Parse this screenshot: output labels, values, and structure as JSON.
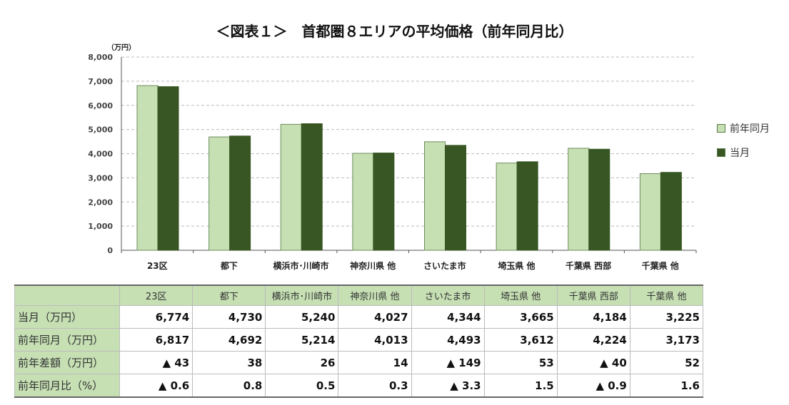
{
  "chart_data": {
    "type": "bar",
    "title": "＜図表１＞　首都圏８エリアの平均価格（前年同月比）",
    "ylabel": "（万円）",
    "ylim": [
      0,
      8000
    ],
    "yticks": [
      "0",
      "1,000",
      "2,000",
      "3,000",
      "4,000",
      "5,000",
      "6,000",
      "7,000",
      "8,000"
    ],
    "grid": true,
    "legend_position": "right",
    "categories": [
      "23区",
      "都下",
      "横浜市･川崎市",
      "神奈川県 他",
      "さいたま市",
      "埼玉県 他",
      "千葉県 西部",
      "千葉県 他"
    ],
    "series": [
      {
        "name": "前年同月",
        "color": "#c6e0b4",
        "values": [
          6817,
          4692,
          5214,
          4013,
          4493,
          3612,
          4224,
          3173
        ]
      },
      {
        "name": "当月",
        "color": "#375623",
        "values": [
          6774,
          4730,
          5240,
          4027,
          4344,
          3665,
          4184,
          3225
        ]
      }
    ]
  },
  "table": {
    "header": [
      "",
      "23区",
      "都下",
      "横浜市･川崎市",
      "神奈川県 他",
      "さいたま市",
      "埼玉県 他",
      "千葉県 西部",
      "千葉県 他"
    ],
    "rows": [
      [
        "当月（万円）",
        "6,774",
        "4,730",
        "5,240",
        "4,027",
        "4,344",
        "3,665",
        "4,184",
        "3,225"
      ],
      [
        "前年同月（万円）",
        "6,817",
        "4,692",
        "5,214",
        "4,013",
        "4,493",
        "3,612",
        "4,224",
        "3,173"
      ],
      [
        "前年差額（万円）",
        "▲ 43",
        "38",
        "26",
        "14",
        "▲ 149",
        "53",
        "▲ 40",
        "52"
      ],
      [
        "前年同月比（%）",
        "▲ 0.6",
        "0.8",
        "0.5",
        "0.3",
        "▲ 3.3",
        "1.5",
        "▲ 0.9",
        "1.6"
      ]
    ]
  }
}
